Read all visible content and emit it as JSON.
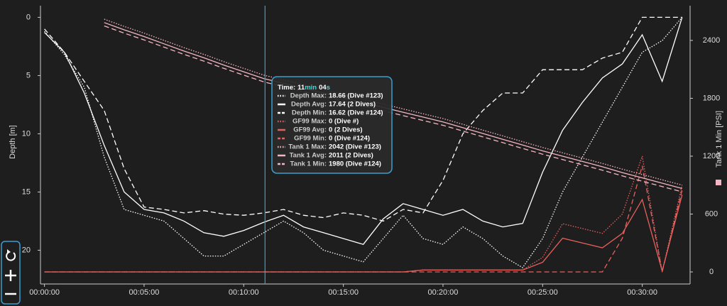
{
  "chart_data": {
    "type": "line",
    "y_label": "Depth [m]",
    "y2_label": "Tank 1 Min [PSI]",
    "x": [
      0,
      1,
      2,
      3,
      4,
      5,
      6,
      7,
      8,
      9,
      10,
      11,
      12,
      13,
      14,
      15,
      16,
      17,
      18,
      19,
      20,
      21,
      22,
      23,
      24,
      25,
      26,
      27,
      28,
      29,
      30,
      31,
      32
    ],
    "xlim": [
      -0.2,
      32.4
    ],
    "xticks": [
      {
        "value": 0,
        "label": "00:00:00"
      },
      {
        "value": 5,
        "label": "00:05:00"
      },
      {
        "value": 10,
        "label": "00:10:00"
      },
      {
        "value": 15,
        "label": "00:15:00"
      },
      {
        "value": 20,
        "label": "00:20:00"
      },
      {
        "value": 25,
        "label": "00:25:00"
      },
      {
        "value": 30,
        "label": "00:30:00"
      }
    ],
    "ylim": [
      -1,
      22.9
    ],
    "y_inverted": true,
    "yticks": [
      0,
      5,
      10,
      15,
      20
    ],
    "y2lim": [
      -125,
      2760
    ],
    "y2ticks": [
      0,
      600,
      1200,
      1800,
      2400
    ],
    "series": [
      {
        "color": "#ffffff",
        "dash": "dotted",
        "values": [
          1.2,
          3.2,
          6,
          12,
          16.5,
          17,
          17.5,
          19,
          20.5,
          20.5,
          19.5,
          18.5,
          17.5,
          18.5,
          20,
          20.5,
          21,
          19,
          17,
          19,
          19.5,
          18,
          19,
          20.5,
          21.5,
          19,
          15,
          12,
          9,
          6,
          3,
          2,
          0
        ]
      },
      {
        "color": "#ffffff",
        "dash": "solid",
        "values": [
          1.3,
          3,
          6.5,
          11,
          15,
          16.5,
          16.8,
          17.5,
          18.5,
          18.8,
          18.3,
          17.6,
          17,
          18,
          18.5,
          19,
          19.5,
          17.3,
          16,
          16.5,
          17,
          16.5,
          17.5,
          18,
          17.7,
          13.3,
          9.7,
          7.3,
          5.2,
          4,
          1.5,
          5.5,
          0
        ]
      },
      {
        "color": "#ffffff",
        "dash": "dashed",
        "values": [
          1,
          3,
          5.5,
          8,
          13,
          16.3,
          16.5,
          16.8,
          16.6,
          16.9,
          17,
          16.8,
          16.5,
          17,
          17.2,
          16.8,
          17,
          17.5,
          16.5,
          16.8,
          14,
          10,
          8,
          6.5,
          6.5,
          4.5,
          4.5,
          4.5,
          3.5,
          3,
          0,
          0,
          0
        ]
      },
      {
        "color": "#e8605c",
        "dash": "dotted",
        "axis": "y2",
        "values": [
          0,
          0,
          0,
          0,
          0,
          0,
          0,
          0,
          0,
          0,
          0,
          0,
          0,
          0,
          0,
          0,
          0,
          0,
          0,
          20,
          20,
          20,
          20,
          20,
          20,
          150,
          500,
          450,
          400,
          600,
          1200,
          0,
          900
        ]
      },
      {
        "color": "#e8605c",
        "dash": "solid",
        "axis": "y2",
        "values": [
          0,
          0,
          0,
          0,
          0,
          0,
          0,
          0,
          0,
          0,
          0,
          0,
          0,
          0,
          0,
          0,
          0,
          0,
          0,
          20,
          20,
          20,
          20,
          20,
          20,
          100,
          350,
          300,
          250,
          400,
          750,
          10,
          800
        ]
      },
      {
        "color": "#e8605c",
        "dash": "dashed",
        "axis": "y2",
        "values": [
          0,
          0,
          0,
          0,
          0,
          0,
          0,
          0,
          0,
          0,
          0,
          0,
          0,
          0,
          0,
          0,
          0,
          0,
          0,
          0,
          0,
          0,
          0,
          0,
          0,
          0,
          0,
          0,
          0,
          350,
          1100,
          0,
          850
        ]
      },
      {
        "color": "#f4b6c2",
        "dash": "dotted",
        "axis": "y2",
        "values": [
          null,
          null,
          null,
          2620,
          2545,
          2475,
          2400,
          2325,
          2255,
          2180,
          2110,
          2040,
          1990,
          1940,
          1890,
          1840,
          1790,
          1740,
          1690,
          1640,
          1590,
          1530,
          1470,
          1410,
          1350,
          1290,
          1235,
          1180,
          1125,
          1065,
          1010,
          955,
          900
        ]
      },
      {
        "color": "#f4b6c2",
        "dash": "solid",
        "axis": "y2",
        "values": [
          null,
          null,
          null,
          2585,
          2510,
          2440,
          2365,
          2290,
          2220,
          2145,
          2075,
          2005,
          1955,
          1905,
          1855,
          1805,
          1755,
          1705,
          1655,
          1605,
          1555,
          1495,
          1435,
          1375,
          1315,
          1255,
          1200,
          1145,
          1090,
          1030,
          975,
          920,
          865
        ]
      },
      {
        "color": "#f4b6c2",
        "dash": "dashed",
        "axis": "y2",
        "values": [
          null,
          null,
          null,
          2550,
          2475,
          2405,
          2330,
          2255,
          2185,
          2110,
          2040,
          1970,
          1920,
          1870,
          1820,
          1770,
          1720,
          1670,
          1620,
          1570,
          1520,
          1460,
          1400,
          1340,
          1280,
          1220,
          1165,
          1110,
          1055,
          995,
          940,
          885,
          830
        ]
      }
    ],
    "cursor_x": 11.07,
    "tooltip": {
      "time_label": "Time:",
      "minutes": "11",
      "min_unit": "min",
      "seconds": "04",
      "sec_unit": "s",
      "rows": [
        {
          "label": "Depth Max:",
          "value": "18.66 (Dive #123)"
        },
        {
          "label": "Depth Avg:",
          "value": "17.64 (2 Dives)"
        },
        {
          "label": "Depth Min:",
          "value": "16.62 (Dive #124)"
        },
        {
          "label": "GF99 Max:",
          "value": "0 (Dive #)"
        },
        {
          "label": "GF99 Avg:",
          "value": "0 (2 Dives)"
        },
        {
          "label": "GF99 Min:",
          "value": "0 (Dive #124)"
        },
        {
          "label": "Tank 1 Max:",
          "value": "2042 (Dive #123)"
        },
        {
          "label": "Tank 1 Avg:",
          "value": "2011 (2 Dives)"
        },
        {
          "label": "Tank 1 Min:",
          "value": "1980 (Dive #124)"
        }
      ]
    }
  }
}
